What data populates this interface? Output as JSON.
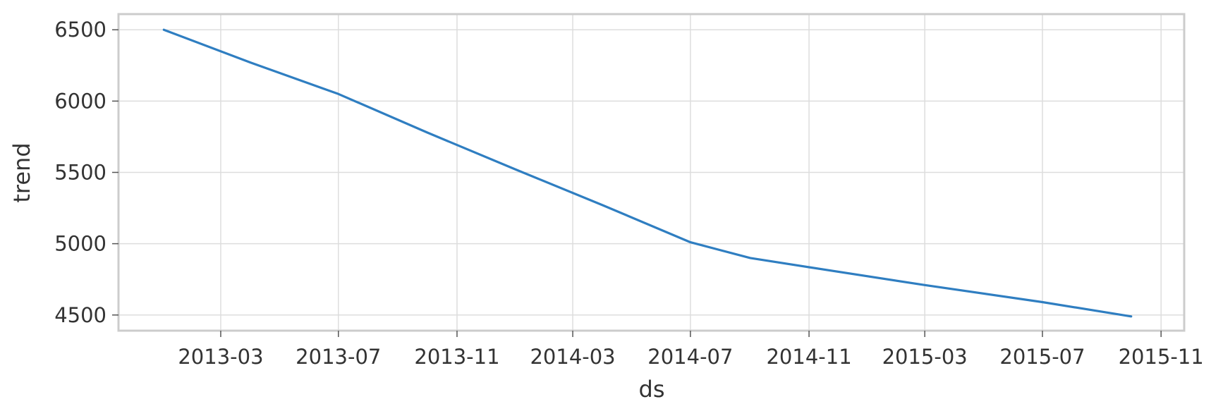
{
  "chart_data": {
    "type": "line",
    "title": "",
    "xlabel": "ds",
    "ylabel": "trend",
    "x_is_date": true,
    "xlim": [
      "2012-11-15",
      "2015-11-25"
    ],
    "ylim": [
      4390,
      6610
    ],
    "x_ticks": [
      "2013-03",
      "2013-07",
      "2013-11",
      "2014-03",
      "2014-07",
      "2014-11",
      "2015-03",
      "2015-07",
      "2015-11"
    ],
    "y_ticks": [
      4500,
      5000,
      5500,
      6000,
      6500
    ],
    "grid": true,
    "legend": "none",
    "line_color": "#2f7ec1",
    "series": [
      {
        "x": [
          "2013-01-01",
          "2013-04-01",
          "2013-07-01",
          "2013-10-01",
          "2014-01-01",
          "2014-04-01",
          "2014-07-01",
          "2014-09-01",
          "2014-11-01",
          "2015-03-01",
          "2015-07-01",
          "2015-10-01"
        ],
        "y": [
          6500,
          6270,
          6050,
          5780,
          5520,
          5270,
          5010,
          4900,
          4835,
          4710,
          4590,
          4490
        ]
      }
    ]
  }
}
